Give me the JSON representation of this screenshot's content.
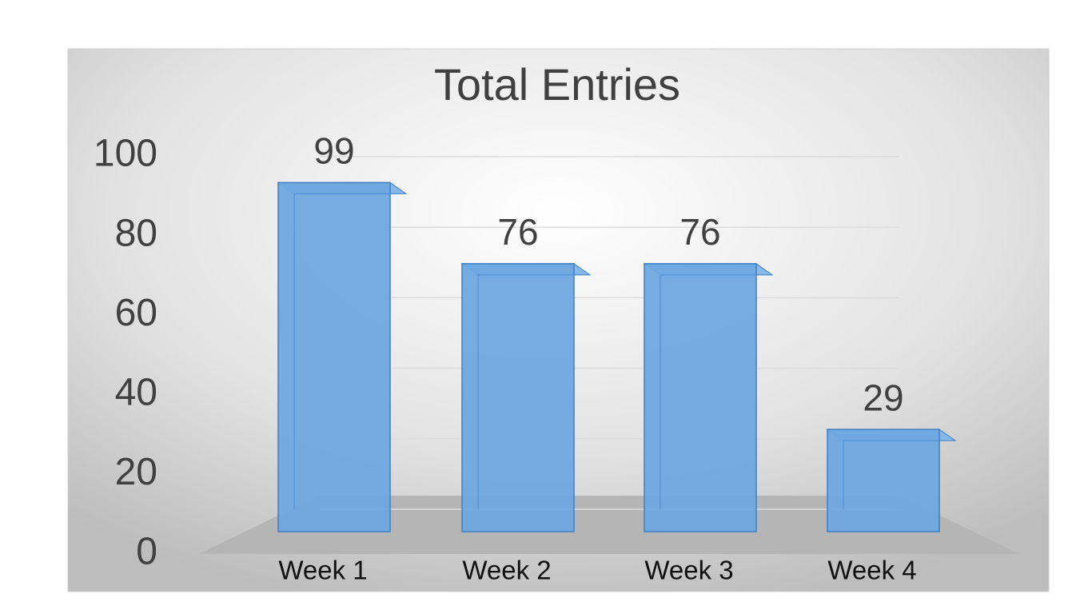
{
  "chart_data": {
    "type": "bar",
    "title": "Total Entries",
    "categories": [
      "Week 1",
      "Week 2",
      "Week 3",
      "Week 4"
    ],
    "values": [
      99,
      76,
      76,
      29
    ],
    "color": "#6fa8e0",
    "ylim": [
      0,
      100
    ],
    "yticks": [
      0,
      20,
      40,
      60,
      80,
      100
    ],
    "grid": true
  }
}
